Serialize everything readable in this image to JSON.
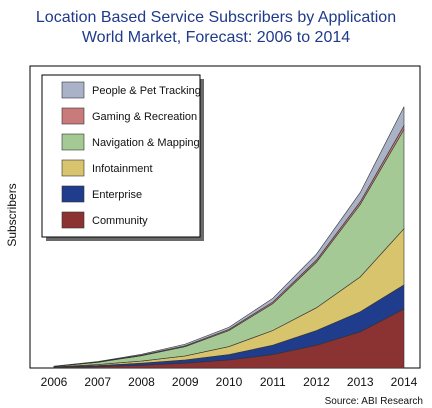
{
  "chart_data": {
    "type": "area",
    "stacked": true,
    "title": "Location Based Service Subscribers by Application",
    "subtitle": "World Market, Forecast: 2006 to 2014",
    "xlabel": "",
    "ylabel": "Subscribers",
    "categories": [
      "2006",
      "2007",
      "2008",
      "2009",
      "2010",
      "2011",
      "2012",
      "2013",
      "2014"
    ],
    "ylim": [
      0,
      100
    ],
    "grid": false,
    "legend_position": "top-left",
    "series": [
      {
        "name": "Community",
        "color": "#8b3232",
        "values": [
          0.2,
          0.5,
          1.0,
          1.8,
          3.0,
          5.0,
          8.5,
          13.5,
          22
        ]
      },
      {
        "name": "Enterprise",
        "color": "#203c8c",
        "values": [
          0.1,
          0.4,
          0.8,
          1.2,
          2.0,
          3.5,
          5.5,
          7.5,
          9
        ]
      },
      {
        "name": "Infotainment",
        "color": "#d8c46c",
        "values": [
          0.1,
          0.4,
          0.8,
          1.5,
          3.0,
          5.5,
          8.5,
          13.0,
          21
        ]
      },
      {
        "name": "Navigation & Mapping",
        "color": "#a4c994",
        "values": [
          0.2,
          0.8,
          2.0,
          3.5,
          6.0,
          10.0,
          17.0,
          27.0,
          37
        ]
      },
      {
        "name": "Gaming & Recreation",
        "color": "#c97a7a",
        "values": [
          0.05,
          0.1,
          0.2,
          0.3,
          0.4,
          0.6,
          0.8,
          1.0,
          1.5
        ]
      },
      {
        "name": "People & Pet Tracking",
        "color": "#aab2c8",
        "values": [
          0.05,
          0.2,
          0.3,
          0.6,
          0.8,
          1.4,
          2.2,
          3.5,
          7
        ]
      }
    ],
    "legend_order": [
      "People & Pet Tracking",
      "Gaming & Recreation",
      "Navigation & Mapping",
      "Infotainment",
      "Enterprise",
      "Community"
    ],
    "source": "Source: ABI Research"
  }
}
